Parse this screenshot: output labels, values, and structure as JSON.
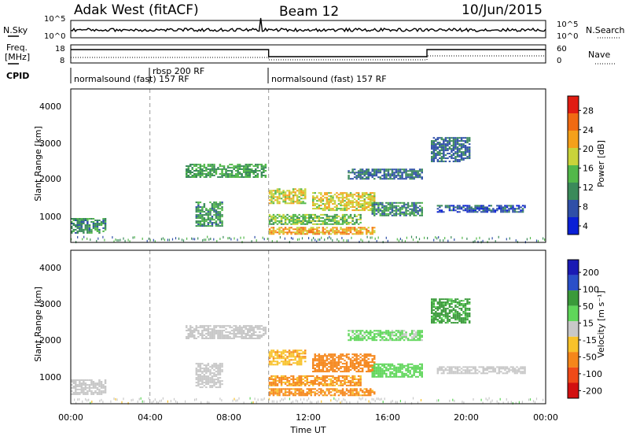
{
  "header": {
    "station": "Adak West (fitACF)",
    "beam": "Beam 12",
    "date": "10/Jun/2015"
  },
  "strip_labels": {
    "nsky": "N.Sky",
    "nsearch": "N.Search",
    "freq_line1": "Freq.",
    "freq_line2": "[MHz]",
    "nave": "Nave",
    "cpid": "CPID"
  },
  "strip_ticks": {
    "noise_left": [
      "10^5",
      "10^0"
    ],
    "noise_right": [
      "10^5",
      "10^0"
    ],
    "freq_left": [
      "18",
      "8"
    ],
    "freq_right": [
      "60",
      "0"
    ]
  },
  "cpid_segments": [
    {
      "label": "normalsound (fast) 157 RF",
      "start_h": 0
    },
    {
      "label": "rbsp 200 RF",
      "start_h": 4.0
    },
    {
      "label": "normalsound (fast) 157 RF",
      "start_h": 10.0
    }
  ],
  "colors": {
    "power": [
      "#0a1fd6",
      "#2f4fa8",
      "#3a8a5a",
      "#52b84a",
      "#c9d33a",
      "#f5a01a",
      "#f06a12",
      "#e11c12"
    ],
    "velocity": [
      "#d21010",
      "#f04a18",
      "#f5861a",
      "#f8c22a",
      "#c8c8c8",
      "#5fd65a",
      "#3a9a3a",
      "#2a4fc8",
      "#1a1ab4"
    ]
  },
  "chart_data": {
    "type": "heatmap",
    "xlabel": "Time UT",
    "x_range_hours": [
      0,
      24
    ],
    "x_ticks": [
      "00:00",
      "04:00",
      "08:00",
      "12:00",
      "16:00",
      "20:00",
      "00:00"
    ],
    "ylabel": "Slant Range [km]",
    "y_range_km": [
      200,
      4600
    ],
    "y_ticks": [
      "1000",
      "2000",
      "3000",
      "4000"
    ],
    "mode_change_hours": [
      4.0,
      10.0
    ],
    "panels": [
      {
        "quantity": "Power [dB]",
        "colorbar_ticks": [
          "28",
          "24",
          "20",
          "16",
          "12",
          "8",
          "4"
        ],
        "colorbar_range": [
          0,
          30
        ]
      },
      {
        "quantity": "Velocity [m s⁻¹]",
        "colorbar_ticks": [
          "200",
          "100",
          "50",
          "15",
          "-15",
          "-50",
          "-100",
          "-200"
        ]
      }
    ],
    "echo_regions": [
      {
        "h0": 0.0,
        "h1": 1.8,
        "r0": 450,
        "r1": 900,
        "power": 10,
        "vel": 0
      },
      {
        "h0": 5.8,
        "h1": 9.8,
        "r0": 2050,
        "r1": 2450,
        "power": 12,
        "vel": 0
      },
      {
        "h0": 6.3,
        "h1": 7.6,
        "r0": 650,
        "r1": 1350,
        "power": 11,
        "vel": 0
      },
      {
        "h0": 10.0,
        "h1": 11.8,
        "r0": 1300,
        "r1": 1750,
        "power": 18,
        "vel": -40
      },
      {
        "h0": 10.0,
        "h1": 14.6,
        "r0": 700,
        "r1": 1000,
        "power": 14,
        "vel": -55
      },
      {
        "h0": 10.0,
        "h1": 15.3,
        "r0": 420,
        "r1": 620,
        "power": 22,
        "vel": -60
      },
      {
        "h0": 12.2,
        "h1": 15.3,
        "r0": 1100,
        "r1": 1600,
        "power": 19,
        "vel": -85
      },
      {
        "h0": 15.2,
        "h1": 17.8,
        "r0": 950,
        "r1": 1350,
        "power": 10,
        "vel": 35
      },
      {
        "h0": 14.0,
        "h1": 17.8,
        "r0": 2000,
        "r1": 2300,
        "power": 8,
        "vel": 25
      },
      {
        "h0": 18.5,
        "h1": 23.0,
        "r0": 1050,
        "r1": 1250,
        "power": 6,
        "vel": 0
      },
      {
        "h0": 18.2,
        "h1": 20.2,
        "r0": 2500,
        "r1": 3200,
        "power": 8,
        "vel": 60
      }
    ]
  }
}
